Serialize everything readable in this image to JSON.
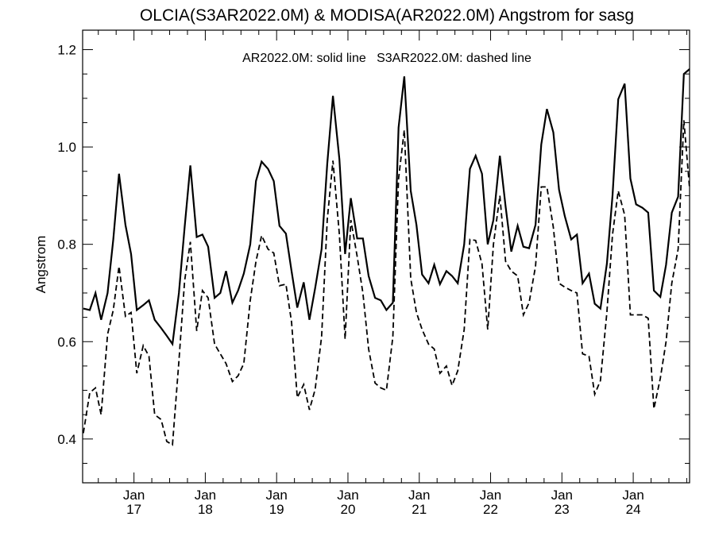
{
  "chart_data": {
    "type": "line",
    "title": "OLCIA(S3AR2022.0M) & MODISA(AR2022.0M)  Angstrom for sasg",
    "xlabel": "",
    "ylabel": "Angstrom",
    "annotation": "AR2022.0M: solid line   S3AR2022.0M: dashed line",
    "ylim": [
      0.31,
      1.24
    ],
    "xlim": [
      2016.28,
      2024.79
    ],
    "grid": false,
    "legend": "none",
    "y_ticks": [
      0.4,
      0.6,
      0.8,
      1.0,
      1.2
    ],
    "y_tick_labels": [
      "0.4",
      "0.6",
      "0.8",
      "1.0",
      "1.2"
    ],
    "x_ticks": [
      2017,
      2018,
      2019,
      2020,
      2021,
      2022,
      2023,
      2024
    ],
    "x_tick_labels": [
      {
        "month": "Jan",
        "year": "17"
      },
      {
        "month": "Jan",
        "year": "18"
      },
      {
        "month": "Jan",
        "year": "19"
      },
      {
        "month": "Jan",
        "year": "20"
      },
      {
        "month": "Jan",
        "year": "21"
      },
      {
        "month": "Jan",
        "year": "22"
      },
      {
        "month": "Jan",
        "year": "23"
      },
      {
        "month": "Jan",
        "year": "24"
      }
    ],
    "x": [
      2016.29,
      2016.38,
      2016.46,
      2016.54,
      2016.63,
      2016.71,
      2016.79,
      2016.88,
      2016.96,
      2017.04,
      2017.13,
      2017.21,
      2017.29,
      2017.38,
      2017.46,
      2017.54,
      2017.63,
      2017.71,
      2017.79,
      2017.88,
      2017.96,
      2018.04,
      2018.13,
      2018.21,
      2018.29,
      2018.38,
      2018.46,
      2018.54,
      2018.63,
      2018.71,
      2018.79,
      2018.88,
      2018.96,
      2019.04,
      2019.13,
      2019.21,
      2019.29,
      2019.38,
      2019.46,
      2019.54,
      2019.63,
      2019.71,
      2019.79,
      2019.88,
      2019.96,
      2020.04,
      2020.13,
      2020.21,
      2020.29,
      2020.38,
      2020.46,
      2020.54,
      2020.63,
      2020.71,
      2020.79,
      2020.88,
      2020.96,
      2021.04,
      2021.13,
      2021.21,
      2021.29,
      2021.38,
      2021.46,
      2021.54,
      2021.63,
      2021.71,
      2021.79,
      2021.88,
      2021.96,
      2022.04,
      2022.13,
      2022.21,
      2022.29,
      2022.38,
      2022.46,
      2022.54,
      2022.63,
      2022.71,
      2022.79,
      2022.88,
      2022.96,
      2023.04,
      2023.13,
      2023.21,
      2023.29,
      2023.38,
      2023.46,
      2023.54,
      2023.63,
      2023.71,
      2023.79,
      2023.88,
      2023.96,
      2024.04,
      2024.13,
      2024.21,
      2024.29,
      2024.38,
      2024.46,
      2024.54,
      2024.63,
      2024.71,
      2024.79
    ],
    "series": [
      {
        "name": "AR2022.0M",
        "style": "solid",
        "color": "#000000",
        "values": [
          0.668,
          0.665,
          0.7,
          0.645,
          0.7,
          0.81,
          0.945,
          0.84,
          0.78,
          0.665,
          0.675,
          0.685,
          0.645,
          0.628,
          0.612,
          0.595,
          0.7,
          0.835,
          0.962,
          0.815,
          0.82,
          0.795,
          0.69,
          0.7,
          0.745,
          0.68,
          0.705,
          0.74,
          0.8,
          0.93,
          0.97,
          0.955,
          0.93,
          0.838,
          0.822,
          0.745,
          0.67,
          0.722,
          0.645,
          0.71,
          0.79,
          0.965,
          1.105,
          0.975,
          0.78,
          0.895,
          0.812,
          0.812,
          0.735,
          0.69,
          0.685,
          0.665,
          0.68,
          1.04,
          1.145,
          0.91,
          0.84,
          0.738,
          0.72,
          0.758,
          0.718,
          0.745,
          0.735,
          0.72,
          0.8,
          0.955,
          0.982,
          0.945,
          0.8,
          0.85,
          0.982,
          0.878,
          0.785,
          0.838,
          0.795,
          0.792,
          0.84,
          1.005,
          1.078,
          1.03,
          0.912,
          0.858,
          0.81,
          0.82,
          0.72,
          0.74,
          0.678,
          0.668,
          0.76,
          0.9,
          1.098,
          1.13,
          0.935,
          0.882,
          0.875,
          0.865,
          0.705,
          0.692,
          0.758,
          0.865,
          0.898,
          1.15,
          1.16
        ]
      },
      {
        "name": "S3AR2022.0M",
        "style": "dashed",
        "color": "#000000",
        "values": [
          0.412,
          0.495,
          0.505,
          0.45,
          0.615,
          0.665,
          0.755,
          0.652,
          0.66,
          0.535,
          0.592,
          0.57,
          0.45,
          0.44,
          0.395,
          0.388,
          0.56,
          0.725,
          0.805,
          0.622,
          0.705,
          0.69,
          0.595,
          0.575,
          0.555,
          0.518,
          0.53,
          0.555,
          0.685,
          0.765,
          0.818,
          0.79,
          0.782,
          0.715,
          0.718,
          0.64,
          0.485,
          0.512,
          0.46,
          0.502,
          0.61,
          0.85,
          0.972,
          0.82,
          0.605,
          0.85,
          0.775,
          0.7,
          0.585,
          0.515,
          0.505,
          0.5,
          0.61,
          0.935,
          1.035,
          0.73,
          0.66,
          0.625,
          0.595,
          0.585,
          0.535,
          0.55,
          0.51,
          0.54,
          0.625,
          0.81,
          0.808,
          0.76,
          0.625,
          0.8,
          0.9,
          0.765,
          0.745,
          0.735,
          0.655,
          0.68,
          0.755,
          0.918,
          0.918,
          0.835,
          0.72,
          0.712,
          0.705,
          0.7,
          0.575,
          0.57,
          0.492,
          0.52,
          0.66,
          0.82,
          0.91,
          0.86,
          0.655,
          0.655,
          0.655,
          0.648,
          0.462,
          0.525,
          0.6,
          0.72,
          0.79,
          1.055,
          0.915
        ]
      }
    ]
  }
}
